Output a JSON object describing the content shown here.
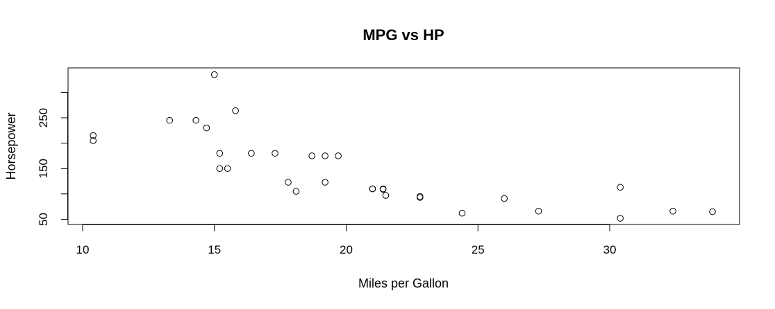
{
  "chart_data": {
    "type": "scatter",
    "title": "MPG vs HP",
    "xlabel": "Miles per Gallon",
    "ylabel": "Horsepower",
    "xlim": [
      10,
      34
    ],
    "ylim": [
      50,
      335
    ],
    "x_ticks": [
      10,
      15,
      20,
      25,
      30
    ],
    "y_ticks": [
      50,
      100,
      150,
      200,
      250,
      300
    ],
    "y_tick_labels": [
      "50",
      "",
      "150",
      "",
      "250",
      ""
    ],
    "marker": "open-circle",
    "grid": false,
    "points": [
      {
        "x": 21.0,
        "y": 110
      },
      {
        "x": 21.0,
        "y": 110
      },
      {
        "x": 22.8,
        "y": 93
      },
      {
        "x": 21.4,
        "y": 110
      },
      {
        "x": 18.7,
        "y": 175
      },
      {
        "x": 18.1,
        "y": 105
      },
      {
        "x": 14.3,
        "y": 245
      },
      {
        "x": 24.4,
        "y": 62
      },
      {
        "x": 22.8,
        "y": 95
      },
      {
        "x": 19.2,
        "y": 123
      },
      {
        "x": 17.8,
        "y": 123
      },
      {
        "x": 16.4,
        "y": 180
      },
      {
        "x": 17.3,
        "y": 180
      },
      {
        "x": 15.2,
        "y": 180
      },
      {
        "x": 10.4,
        "y": 205
      },
      {
        "x": 10.4,
        "y": 215
      },
      {
        "x": 14.7,
        "y": 230
      },
      {
        "x": 32.4,
        "y": 66
      },
      {
        "x": 30.4,
        "y": 52
      },
      {
        "x": 33.9,
        "y": 65
      },
      {
        "x": 21.5,
        "y": 97
      },
      {
        "x": 15.5,
        "y": 150
      },
      {
        "x": 15.2,
        "y": 150
      },
      {
        "x": 13.3,
        "y": 245
      },
      {
        "x": 19.2,
        "y": 175
      },
      {
        "x": 27.3,
        "y": 66
      },
      {
        "x": 26.0,
        "y": 91
      },
      {
        "x": 30.4,
        "y": 113
      },
      {
        "x": 15.8,
        "y": 264
      },
      {
        "x": 19.7,
        "y": 175
      },
      {
        "x": 15.0,
        "y": 335
      },
      {
        "x": 21.4,
        "y": 109
      }
    ]
  }
}
